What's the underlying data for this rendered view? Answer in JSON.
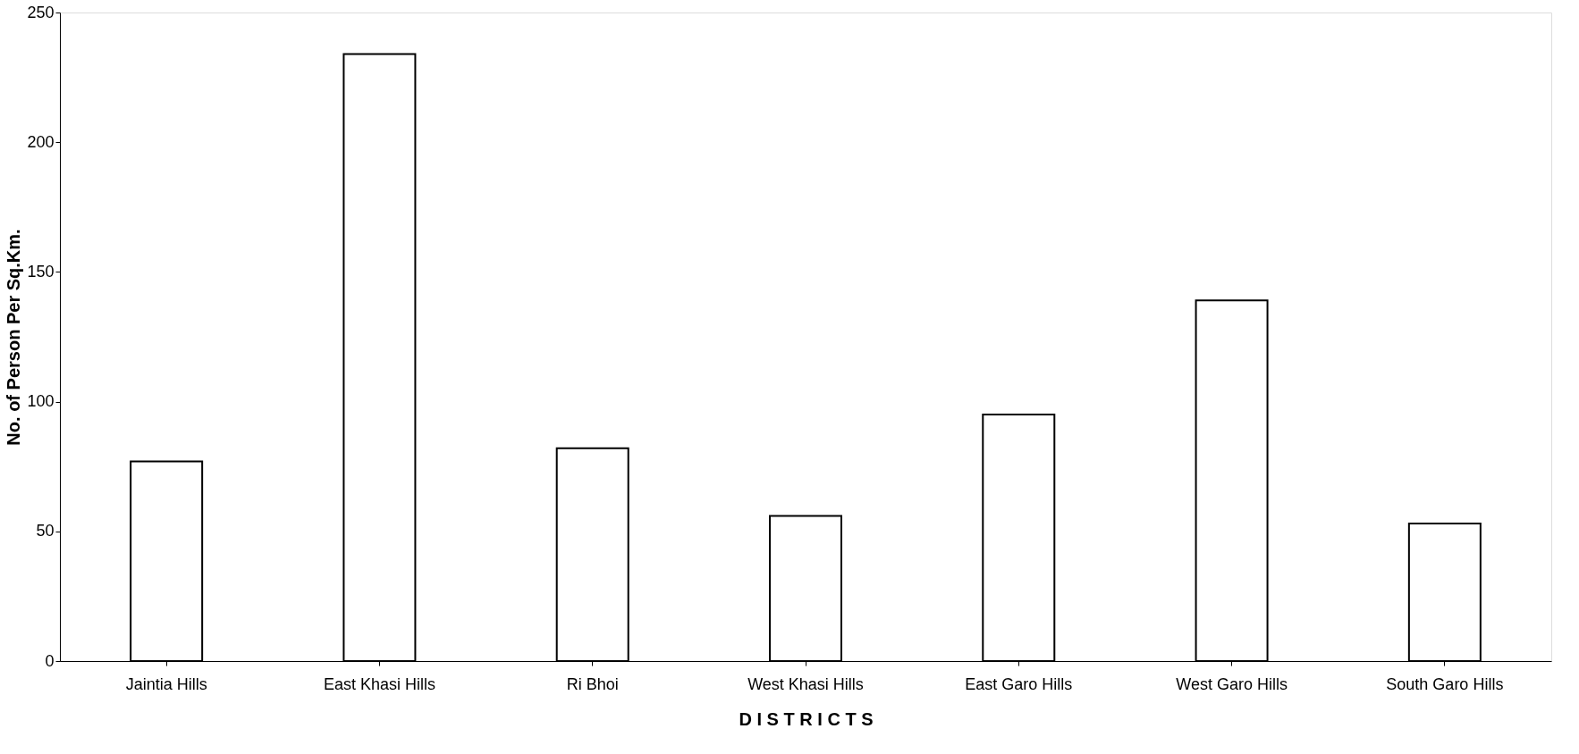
{
  "chart_data": {
    "type": "bar",
    "xlabel": "D I S T R I C T S",
    "ylabel": "No. of Person Per Sq.Km.",
    "categories": [
      "Jaintia Hills",
      "East Khasi Hills",
      "Ri Bhoi",
      "West Khasi Hills",
      "East Garo Hills",
      "West Garo Hills",
      "South Garo Hills"
    ],
    "values": [
      77,
      234,
      82,
      56,
      95,
      139,
      53
    ],
    "color": "#ffffff",
    "ylim": [
      0,
      250
    ],
    "yticks": [
      0,
      50,
      100,
      150,
      200,
      250
    ],
    "grid": false
  }
}
